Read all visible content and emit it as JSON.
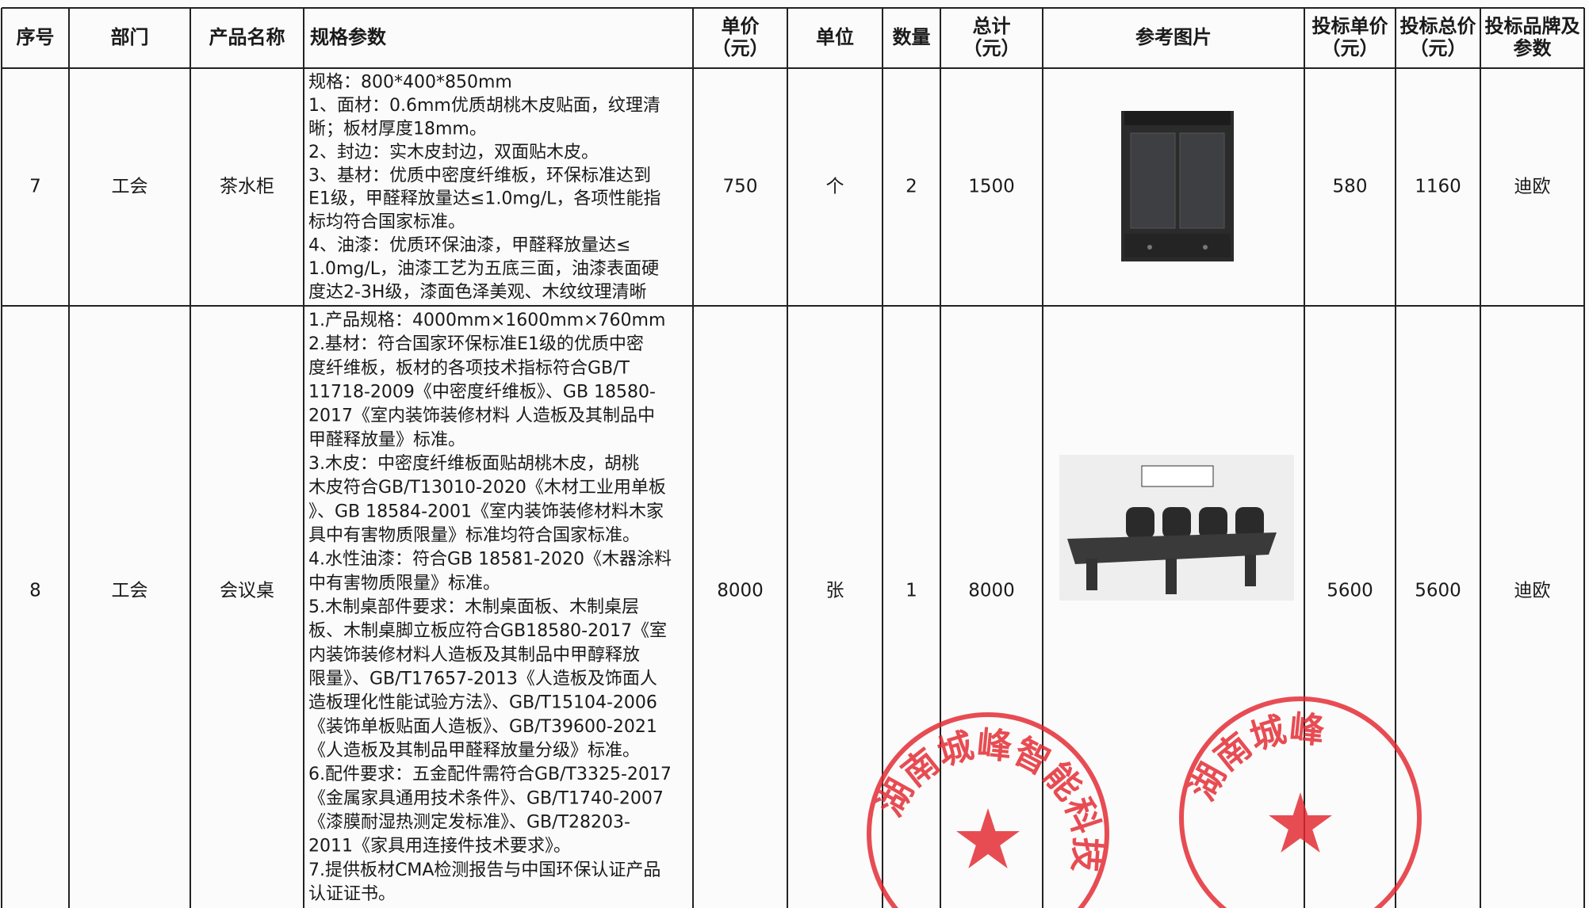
{
  "header": [
    [
      "序号"
    ],
    [
      "部门"
    ],
    [
      "产品名称"
    ],
    [
      "规格参数"
    ],
    [
      "单价",
      "（元）"
    ],
    [
      "单位"
    ],
    [
      "数量"
    ],
    [
      "总计",
      "（元）"
    ],
    [
      "参考图片"
    ],
    [
      "投标单价",
      "（元）"
    ],
    [
      "投标总价",
      "（元）"
    ],
    [
      "投标品牌及",
      "参数"
    ]
  ],
  "rows": [
    {
      "no": 7,
      "dept": "工会",
      "name": "茶水柜",
      "spec": [
        "规格：800*400*850mm",
        "1、面材：0.6mm优质胡桃木皮贴面，纹理清",
        "晰；板材厚度18mm。",
        "2、封边：实木皮封边，双面贴木皮。",
        "3、基材：优质中密度纤维板，环保标准达到",
        "E1级，甲醛释放量达≤1.0mg/L，各项性能指",
        "标均符合国家标准。",
        "4、油漆：优质环保油漆，甲醛释放量达≤",
        "1.0mg/L，油漆工艺为五底三面，油漆表面硬",
        "度达2-3H级，漆面色泽美观、木纹纹理清晰"
      ],
      "price": 750,
      "unit": "个",
      "qty": 2,
      "total": 1500,
      "bid_price": 580,
      "bid_total": 1160,
      "brand": "迪欧"
    },
    {
      "no": 8,
      "dept": "工会",
      "name": "会议桌",
      "spec": [
        "1.产品规格：4000mm×1600mm×760mm",
        "2.基材：符合国家环保标准E1级的优质中密",
        "度纤维板，板材的各项技术指标符合GB/T",
        "11718-2009《中密度纤维板》、GB 18580-",
        "2017《室内装饰装修材料 人造板及其制品中",
        "甲醛释放量》标准。",
        "3.木皮：中密度纤维板面贴胡桃木皮，胡桃",
        "木皮符合GB/T13010-2020《木材工业用单板",
        "》、GB 18584-2001《室内装饰装修材料木家",
        "具中有害物质限量》标准均符合国家标准。",
        "4.水性油漆：符合GB 18581-2020《木器涂料",
        "中有害物质限量》标准。",
        "5.木制桌部件要求：木制桌面板、木制桌层",
        "板、木制桌脚立板应符合GB18580-2017《室",
        "内装饰装修材料人造板及其制品中甲醇释放",
        "限量》、GB/T17657-2013《人造板及饰面人",
        "造板理化性能试验方法》、GB/T15104-2006",
        "《装饰单板贴面人造板》、GB/T39600-2021",
        "《人造板及其制品甲醛释放量分级》标准。",
        "6.配件要求：五金配件需符合GB/T3325-2017",
        "《金属家具通用技术条件》、GB/T1740-2007",
        "《漆膜耐湿热测定发标准》、GB/T28203-",
        "2011《家具用连接件技术要求》。",
        "7.提供板材CMA检测报告与中国环保认证产品",
        "认证证书。"
      ],
      "price": 8000,
      "unit": "张",
      "qty": 1,
      "total": 8000,
      "bid_price": 5600,
      "bid_total": 5600,
      "brand": "迪欧"
    }
  ],
  "stamps": [
    "湖南城峰智能科技有",
    "湖南城峰"
  ]
}
